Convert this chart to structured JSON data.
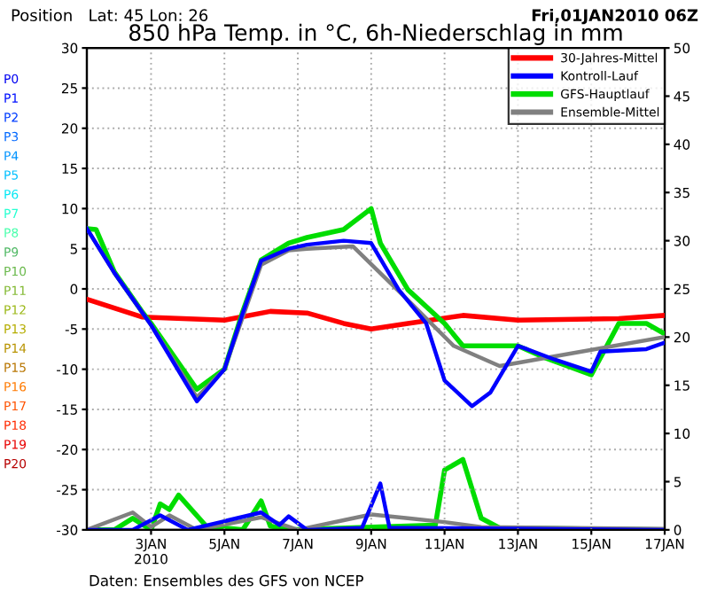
{
  "chart_data": {
    "type": "line",
    "title": "850 hPa Temp. in °C, 6h-Niederschlag in mm",
    "annotations": [
      "Position   Lat: 45 Lon: 26",
      "Fri,01JAN2010 06Z",
      "Daten: Ensembles des GFS von NCEP",
      "P0",
      "P1",
      "P2",
      "P3",
      "P4",
      "P5",
      "P6",
      "P7",
      "P8",
      "P9",
      "P10",
      "P11",
      "P12",
      "P13",
      "P14",
      "P15",
      "P16",
      "P17",
      "P18",
      "P19",
      "P20"
    ],
    "xlim": [
      "2010-01-01T06:00",
      "2010-01-17T00:00"
    ],
    "xticks": [
      {
        "value": "2010-01-03",
        "label": "3JAN\n2010"
      },
      {
        "value": "2010-01-05",
        "label": "5JAN"
      },
      {
        "value": "2010-01-07",
        "label": "7JAN"
      },
      {
        "value": "2010-01-09",
        "label": "9JAN"
      },
      {
        "value": "2010-01-11",
        "label": "11JAN"
      },
      {
        "value": "2010-01-13",
        "label": "13JAN"
      },
      {
        "value": "2010-01-15",
        "label": "15JAN"
      },
      {
        "value": "2010-01-17",
        "label": "17JAN"
      }
    ],
    "ylim": [
      -30,
      30
    ],
    "yticks": [
      -30,
      -25,
      -20,
      -15,
      -10,
      -5,
      0,
      5,
      10,
      15,
      20,
      25,
      30
    ],
    "y2lim": [
      0,
      50
    ],
    "y2ticks": [
      0,
      5,
      10,
      15,
      20,
      25,
      30,
      35,
      40,
      45,
      50
    ],
    "grid": true,
    "legend": "top right",
    "series": [
      {
        "name": "30-Jahres-Mittel",
        "color": "#ff0000",
        "x": [
          "2010-01-01T06:00",
          "2010-01-02T18:00",
          "2010-01-05T00:00",
          "2010-01-06T06:00",
          "2010-01-07T06:00",
          "2010-01-08T06:00",
          "2010-01-09T00:00",
          "2010-01-10T00:00",
          "2010-01-11T12:00",
          "2010-01-13T00:00",
          "2010-01-15T18:00",
          "2010-01-17T00:00"
        ],
        "values": [
          -1.3,
          -3.5,
          -3.9,
          -2.8,
          -3,
          -4.3,
          -5,
          -4.3,
          -3.3,
          -3.9,
          -3.7,
          -3.3
        ]
      },
      {
        "name": "Kontroll-Lauf",
        "color": "#0000ff",
        "x": [
          "2010-01-01T06:00",
          "2010-01-02T00:00",
          "2010-01-03T00:00",
          "2010-01-04T06:00",
          "2010-01-05T00:00",
          "2010-01-05T12:00",
          "2010-01-06T00:00",
          "2010-01-06T18:00",
          "2010-01-07T06:00",
          "2010-01-08T06:00",
          "2010-01-09T00:00",
          "2010-01-09T18:00",
          "2010-01-10T12:00",
          "2010-01-11T00:00",
          "2010-01-11T18:00",
          "2010-01-12T06:00",
          "2010-01-13T00:00",
          "2010-01-13T06:00",
          "2010-01-14T00:00",
          "2010-01-15T00:00",
          "2010-01-15T06:00",
          "2010-01-16T12:00",
          "2010-01-17T00:00"
        ],
        "values": [
          7.5,
          2,
          -4.5,
          -14,
          -10,
          -3,
          3.5,
          5,
          5.5,
          6,
          5.7,
          -0.1,
          -4.3,
          -11.4,
          -14.6,
          -12.9,
          -7.1,
          -7.5,
          -8.8,
          -10.3,
          -7.8,
          -7.5,
          -6.7
        ]
      },
      {
        "name": "GFS-Hauptlauf",
        "color": "#00dd00",
        "x": [
          "2010-01-01T06:00",
          "2010-01-01T12:00",
          "2010-01-02T00:00",
          "2010-01-02T18:00",
          "2010-01-03T00:00",
          "2010-01-04T06:00",
          "2010-01-05T00:00",
          "2010-01-05T12:00",
          "2010-01-06T00:00",
          "2010-01-06T18:00",
          "2010-01-07T06:00",
          "2010-01-08T06:00",
          "2010-01-09T00:00",
          "2010-01-09T06:00",
          "2010-01-10T00:00",
          "2010-01-11T00:00",
          "2010-01-11T12:00",
          "2010-01-13T00:00",
          "2010-01-13T18:00",
          "2010-01-15T00:00",
          "2010-01-15T18:00",
          "2010-01-16T12:00",
          "2010-01-17T00:00"
        ],
        "values": [
          7.5,
          7.4,
          2.1,
          -2.8,
          -4.3,
          -12.5,
          -10,
          -2.8,
          3.6,
          5.7,
          6.4,
          7.4,
          10,
          5.7,
          -0.1,
          -4.3,
          -7.1,
          -7.1,
          -8.6,
          -10.7,
          -4.3,
          -4.3,
          -5.6
        ]
      },
      {
        "name": "Ensemble-Mittel",
        "color": "#808080",
        "x": [
          "2010-01-01T06:00",
          "2010-01-02T00:00",
          "2010-01-03T00:00",
          "2010-01-04T06:00",
          "2010-01-05T00:00",
          "2010-01-05T12:00",
          "2010-01-06T00:00",
          "2010-01-06T18:00",
          "2010-01-07T06:00",
          "2010-01-08T12:00",
          "2010-01-10T00:00",
          "2010-01-11T06:00",
          "2010-01-12T12:00",
          "2010-01-14T06:00",
          "2010-01-17T00:00"
        ],
        "values": [
          7.5,
          2,
          -4.5,
          -13.5,
          -10,
          -3.5,
          3,
          4.8,
          5,
          5.3,
          -1.4,
          -7.1,
          -9.6,
          -8.2,
          -6
        ]
      },
      {
        "color": "#0000ff",
        "axis": "y2",
        "x": [
          "2010-01-01T06:00",
          "2010-01-02T12:00",
          "2010-01-03T06:00",
          "2010-01-04T00:00",
          "2010-01-06T00:00",
          "2010-01-06T12:00",
          "2010-01-06T18:00",
          "2010-01-07T06:00",
          "2010-01-08T18:00",
          "2010-01-09T06:00",
          "2010-01-09T12:00",
          "2010-01-10T00:00",
          "2010-01-17T00:00"
        ],
        "values": [
          0,
          0,
          1.5,
          0,
          1.8,
          0.5,
          1.4,
          0,
          0.2,
          4.8,
          0.2,
          0.2,
          0
        ]
      },
      {
        "color": "#00dd00",
        "axis": "y2",
        "x": [
          "2010-01-01T06:00",
          "2010-01-02T00:00",
          "2010-01-02T12:00",
          "2010-01-03T00:00",
          "2010-01-03T06:00",
          "2010-01-03T12:00",
          "2010-01-03T18:00",
          "2010-01-04T12:00",
          "2010-01-05T12:00",
          "2010-01-06T00:00",
          "2010-01-06T06:00",
          "2010-01-06T18:00",
          "2010-01-10T18:00",
          "2010-01-11T00:00",
          "2010-01-11T12:00",
          "2010-01-12T00:00",
          "2010-01-12T12:00",
          "2010-01-17T00:00"
        ],
        "values": [
          0,
          0,
          1.2,
          0,
          2.7,
          2.1,
          3.6,
          0.4,
          0,
          3,
          0.4,
          0,
          0.5,
          6.2,
          7.3,
          1.2,
          0.2,
          0
        ]
      },
      {
        "color": "#808080",
        "axis": "y2",
        "x": [
          "2010-01-01T06:00",
          "2010-01-02T12:00",
          "2010-01-03T00:00",
          "2010-01-03T12:00",
          "2010-01-04T06:00",
          "2010-01-06T00:00",
          "2010-01-07T00:00",
          "2010-01-08T06:00",
          "2010-01-09T00:00",
          "2010-01-10T00:00",
          "2010-01-11T00:00",
          "2010-01-12T00:00",
          "2010-01-17T00:00"
        ],
        "values": [
          0,
          1.8,
          0.3,
          1.5,
          0,
          1.3,
          0,
          1,
          1.6,
          1.2,
          0.8,
          0.3,
          0.1
        ]
      }
    ]
  }
}
